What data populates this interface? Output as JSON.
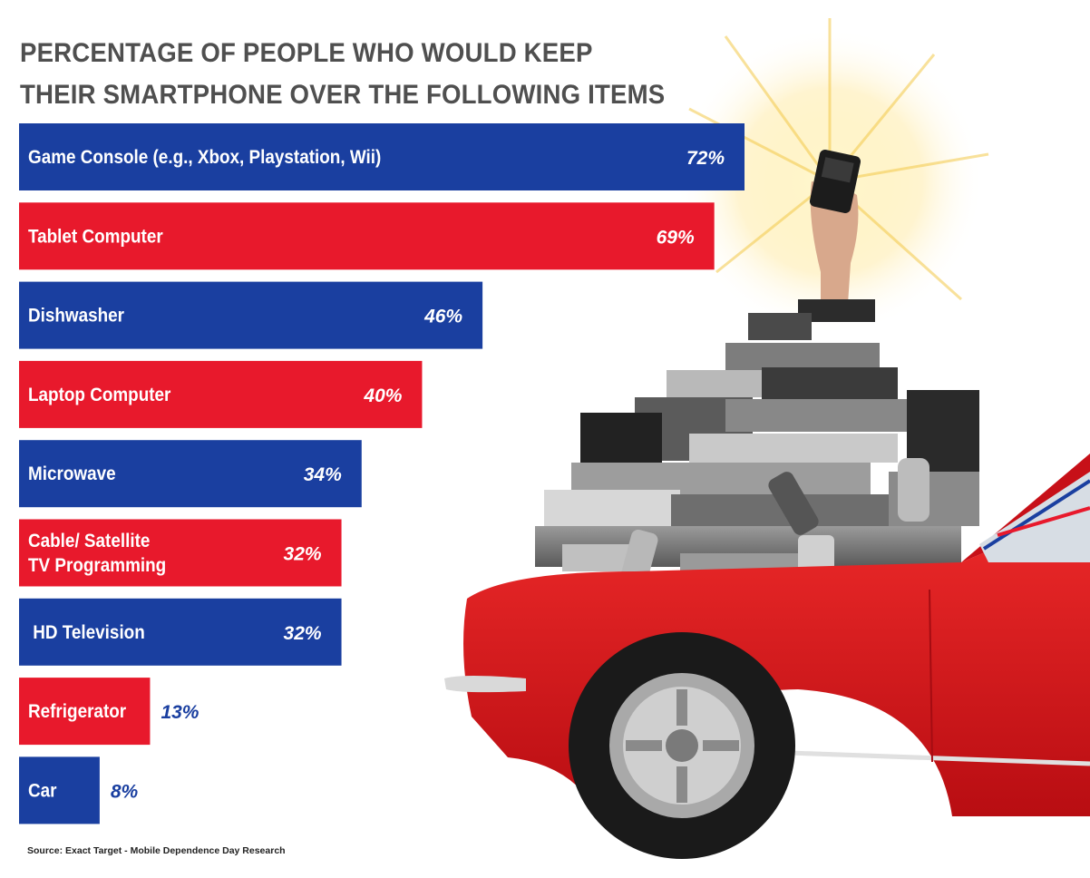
{
  "title_lines": [
    "PERCENTAGE OF PEOPLE WHO WOULD KEEP",
    "THEIR SMARTPHONE OVER THE  FOLLOWING ITEMS"
  ],
  "source": "Source: Exact Target - Mobile Dependence Day Research",
  "colors": {
    "blue": "#1a3fa0",
    "red": "#e8192c",
    "title": "#4f4f4f",
    "car_red": "#d9141e"
  },
  "chart_data": {
    "type": "bar",
    "orientation": "horizontal",
    "categories": [
      "Game Console (e.g., Xbox, Playstation, Wii)",
      "Tablet Computer",
      "Dishwasher",
      "Laptop Computer",
      "Microwave",
      "Cable/ Satellite\nTV Programming",
      " HD Television",
      "Refrigerator",
      "Car"
    ],
    "values": [
      72,
      69,
      46,
      40,
      34,
      32,
      32,
      13,
      8
    ],
    "value_labels": [
      "72%",
      "69%",
      "46%",
      "40%",
      "34%",
      "32%",
      "32%",
      "13%",
      "8%"
    ],
    "bar_colors": [
      "blue",
      "red",
      "blue",
      "red",
      "blue",
      "red",
      "blue",
      "red",
      "blue"
    ],
    "title": "PERCENTAGE OF PEOPLE WHO WOULD KEEP THEIR SMARTPHONE OVER THE  FOLLOWING ITEMS",
    "xlim": [
      0,
      100
    ],
    "grid": false,
    "legend": "none"
  }
}
